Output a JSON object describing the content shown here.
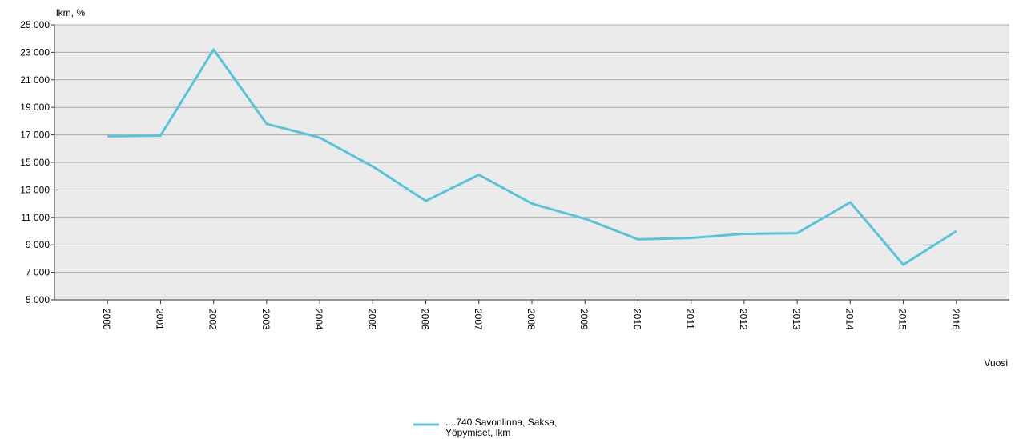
{
  "chart_data": {
    "type": "line",
    "y_axis_label": "lkm, %",
    "x_axis_label": "Vuosi",
    "categories": [
      "2000",
      "2001",
      "2002",
      "2003",
      "2004",
      "2005",
      "2006",
      "2007",
      "2008",
      "2009",
      "2010",
      "2011",
      "2012",
      "2013",
      "2014",
      "2015",
      "2016"
    ],
    "series": [
      {
        "name": "....740 Savonlinna, Saksa, Yöpymiset, lkm",
        "color": "#56c5dc",
        "values": [
          16900,
          16950,
          23200,
          17800,
          16800,
          14700,
          12200,
          14100,
          12000,
          10900,
          9400,
          9500,
          9800,
          9850,
          12100,
          7550,
          10000
        ]
      }
    ],
    "ylim": [
      5000,
      25000
    ],
    "yticks": [
      {
        "value": 5000,
        "label": "5 000"
      },
      {
        "value": 7000,
        "label": "7 000"
      },
      {
        "value": 9000,
        "label": "9 000"
      },
      {
        "value": 11000,
        "label": "11 000"
      },
      {
        "value": 13000,
        "label": "13 000"
      },
      {
        "value": 15000,
        "label": "15 000"
      },
      {
        "value": 17000,
        "label": "17 000"
      },
      {
        "value": 19000,
        "label": "19 000"
      },
      {
        "value": 21000,
        "label": "21 000"
      },
      {
        "value": 23000,
        "label": "23 000"
      },
      {
        "value": 25000,
        "label": "25 000"
      }
    ],
    "grid": true
  }
}
